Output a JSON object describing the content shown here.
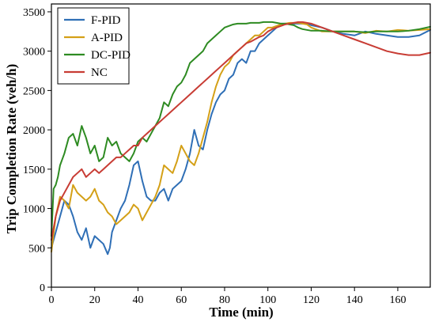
{
  "chart_data": {
    "type": "line",
    "xlabel": "Time (min)",
    "ylabel": "Trip Completion Rate (veh/h)",
    "xlim": [
      0,
      175
    ],
    "ylim": [
      0,
      3600
    ],
    "xticks": [
      0,
      20,
      40,
      60,
      80,
      100,
      120,
      140,
      160
    ],
    "yticks": [
      0,
      500,
      1000,
      1500,
      2000,
      2500,
      3000,
      3500
    ],
    "grid": false,
    "legend_position": "top-left",
    "series": [
      {
        "name": "F-PID",
        "color": "#2f6fb6",
        "x": [
          0,
          2,
          4,
          6,
          8,
          10,
          12,
          14,
          16,
          18,
          20,
          22,
          24,
          26,
          27,
          28,
          30,
          32,
          34,
          36,
          38,
          40,
          42,
          44,
          46,
          48,
          50,
          52,
          54,
          56,
          58,
          60,
          62,
          64,
          66,
          68,
          70,
          72,
          74,
          76,
          78,
          80,
          82,
          84,
          86,
          88,
          90,
          92,
          94,
          96,
          98,
          100,
          102,
          104,
          106,
          108,
          110,
          112,
          114,
          116,
          118,
          120,
          125,
          130,
          135,
          140,
          145,
          150,
          155,
          160,
          165,
          170,
          175
        ],
        "y": [
          500,
          700,
          900,
          1100,
          1050,
          900,
          700,
          600,
          750,
          500,
          650,
          600,
          550,
          420,
          500,
          700,
          850,
          1000,
          1100,
          1300,
          1550,
          1600,
          1350,
          1150,
          1100,
          1100,
          1200,
          1250,
          1100,
          1250,
          1300,
          1350,
          1500,
          1700,
          2000,
          1800,
          1750,
          2000,
          2200,
          2350,
          2450,
          2500,
          2650,
          2700,
          2850,
          2900,
          2850,
          3000,
          3000,
          3100,
          3150,
          3200,
          3250,
          3300,
          3350,
          3350,
          3350,
          3350,
          3350,
          3350,
          3350,
          3330,
          3300,
          3250,
          3220,
          3200,
          3250,
          3220,
          3200,
          3180,
          3180,
          3200,
          3270
        ]
      },
      {
        "name": "A-PID",
        "color": "#d4a017",
        "x": [
          0,
          2,
          4,
          6,
          8,
          10,
          12,
          14,
          16,
          18,
          20,
          22,
          24,
          26,
          28,
          30,
          32,
          34,
          36,
          38,
          40,
          42,
          44,
          46,
          48,
          50,
          52,
          54,
          56,
          58,
          60,
          62,
          64,
          66,
          68,
          70,
          72,
          74,
          76,
          78,
          80,
          82,
          84,
          86,
          88,
          90,
          92,
          94,
          96,
          98,
          100,
          102,
          104,
          106,
          108,
          110,
          112,
          114,
          116,
          118,
          120,
          125,
          130,
          135,
          140,
          145,
          150,
          155,
          160,
          165,
          170,
          175
        ],
        "y": [
          450,
          900,
          1150,
          1100,
          1000,
          1300,
          1200,
          1150,
          1100,
          1150,
          1250,
          1100,
          1050,
          950,
          900,
          800,
          850,
          900,
          950,
          1050,
          1000,
          850,
          950,
          1050,
          1150,
          1300,
          1550,
          1500,
          1450,
          1600,
          1800,
          1700,
          1600,
          1550,
          1700,
          1900,
          2100,
          2350,
          2550,
          2700,
          2800,
          2850,
          2950,
          3000,
          3050,
          3100,
          3150,
          3200,
          3200,
          3250,
          3300,
          3300,
          3320,
          3340,
          3350,
          3360,
          3360,
          3360,
          3350,
          3340,
          3300,
          3250,
          3250,
          3250,
          3250,
          3230,
          3260,
          3250,
          3270,
          3260,
          3270,
          3280
        ]
      },
      {
        "name": "DC-PID",
        "color": "#2e8b22",
        "x": [
          0,
          1,
          2,
          3,
          4,
          6,
          8,
          10,
          12,
          14,
          16,
          18,
          20,
          22,
          24,
          26,
          28,
          30,
          32,
          34,
          36,
          38,
          40,
          42,
          44,
          46,
          48,
          50,
          52,
          54,
          56,
          58,
          60,
          62,
          64,
          66,
          68,
          70,
          72,
          74,
          76,
          78,
          80,
          82,
          84,
          86,
          88,
          90,
          92,
          94,
          96,
          98,
          100,
          102,
          104,
          106,
          108,
          110,
          112,
          114,
          116,
          118,
          120,
          125,
          130,
          135,
          140,
          145,
          150,
          155,
          160,
          165,
          170,
          175
        ],
        "y": [
          650,
          1250,
          1300,
          1400,
          1550,
          1700,
          1900,
          1950,
          1800,
          2050,
          1900,
          1700,
          1800,
          1600,
          1650,
          1900,
          1800,
          1850,
          1700,
          1650,
          1600,
          1700,
          1850,
          1900,
          1850,
          1950,
          2050,
          2150,
          2350,
          2300,
          2450,
          2550,
          2600,
          2700,
          2850,
          2900,
          2950,
          3000,
          3100,
          3150,
          3200,
          3250,
          3300,
          3320,
          3340,
          3350,
          3350,
          3350,
          3360,
          3360,
          3360,
          3370,
          3370,
          3370,
          3360,
          3350,
          3350,
          3340,
          3330,
          3300,
          3280,
          3270,
          3260,
          3260,
          3250,
          3250,
          3250,
          3240,
          3250,
          3250,
          3250,
          3260,
          3280,
          3310
        ]
      },
      {
        "name": "NC",
        "color": "#c83c34",
        "x": [
          0,
          2,
          4,
          6,
          8,
          10,
          12,
          14,
          16,
          18,
          20,
          22,
          24,
          26,
          28,
          30,
          32,
          34,
          36,
          38,
          40,
          42,
          44,
          46,
          48,
          50,
          52,
          54,
          56,
          58,
          60,
          62,
          64,
          66,
          68,
          70,
          72,
          74,
          76,
          78,
          80,
          82,
          84,
          86,
          88,
          90,
          92,
          94,
          96,
          98,
          100,
          102,
          104,
          106,
          108,
          110,
          112,
          114,
          116,
          118,
          120,
          125,
          130,
          135,
          140,
          145,
          150,
          155,
          160,
          165,
          170,
          175
        ],
        "y": [
          600,
          900,
          1100,
          1200,
          1300,
          1400,
          1450,
          1500,
          1400,
          1450,
          1500,
          1450,
          1500,
          1550,
          1600,
          1650,
          1650,
          1700,
          1750,
          1800,
          1800,
          1900,
          1950,
          2000,
          2050,
          2100,
          2150,
          2200,
          2250,
          2300,
          2350,
          2400,
          2450,
          2500,
          2550,
          2600,
          2650,
          2700,
          2750,
          2800,
          2850,
          2900,
          2950,
          3000,
          3050,
          3100,
          3120,
          3150,
          3180,
          3200,
          3250,
          3280,
          3300,
          3320,
          3340,
          3350,
          3360,
          3370,
          3370,
          3360,
          3350,
          3300,
          3250,
          3200,
          3150,
          3100,
          3050,
          3000,
          2970,
          2950,
          2950,
          2980
        ]
      }
    ]
  }
}
